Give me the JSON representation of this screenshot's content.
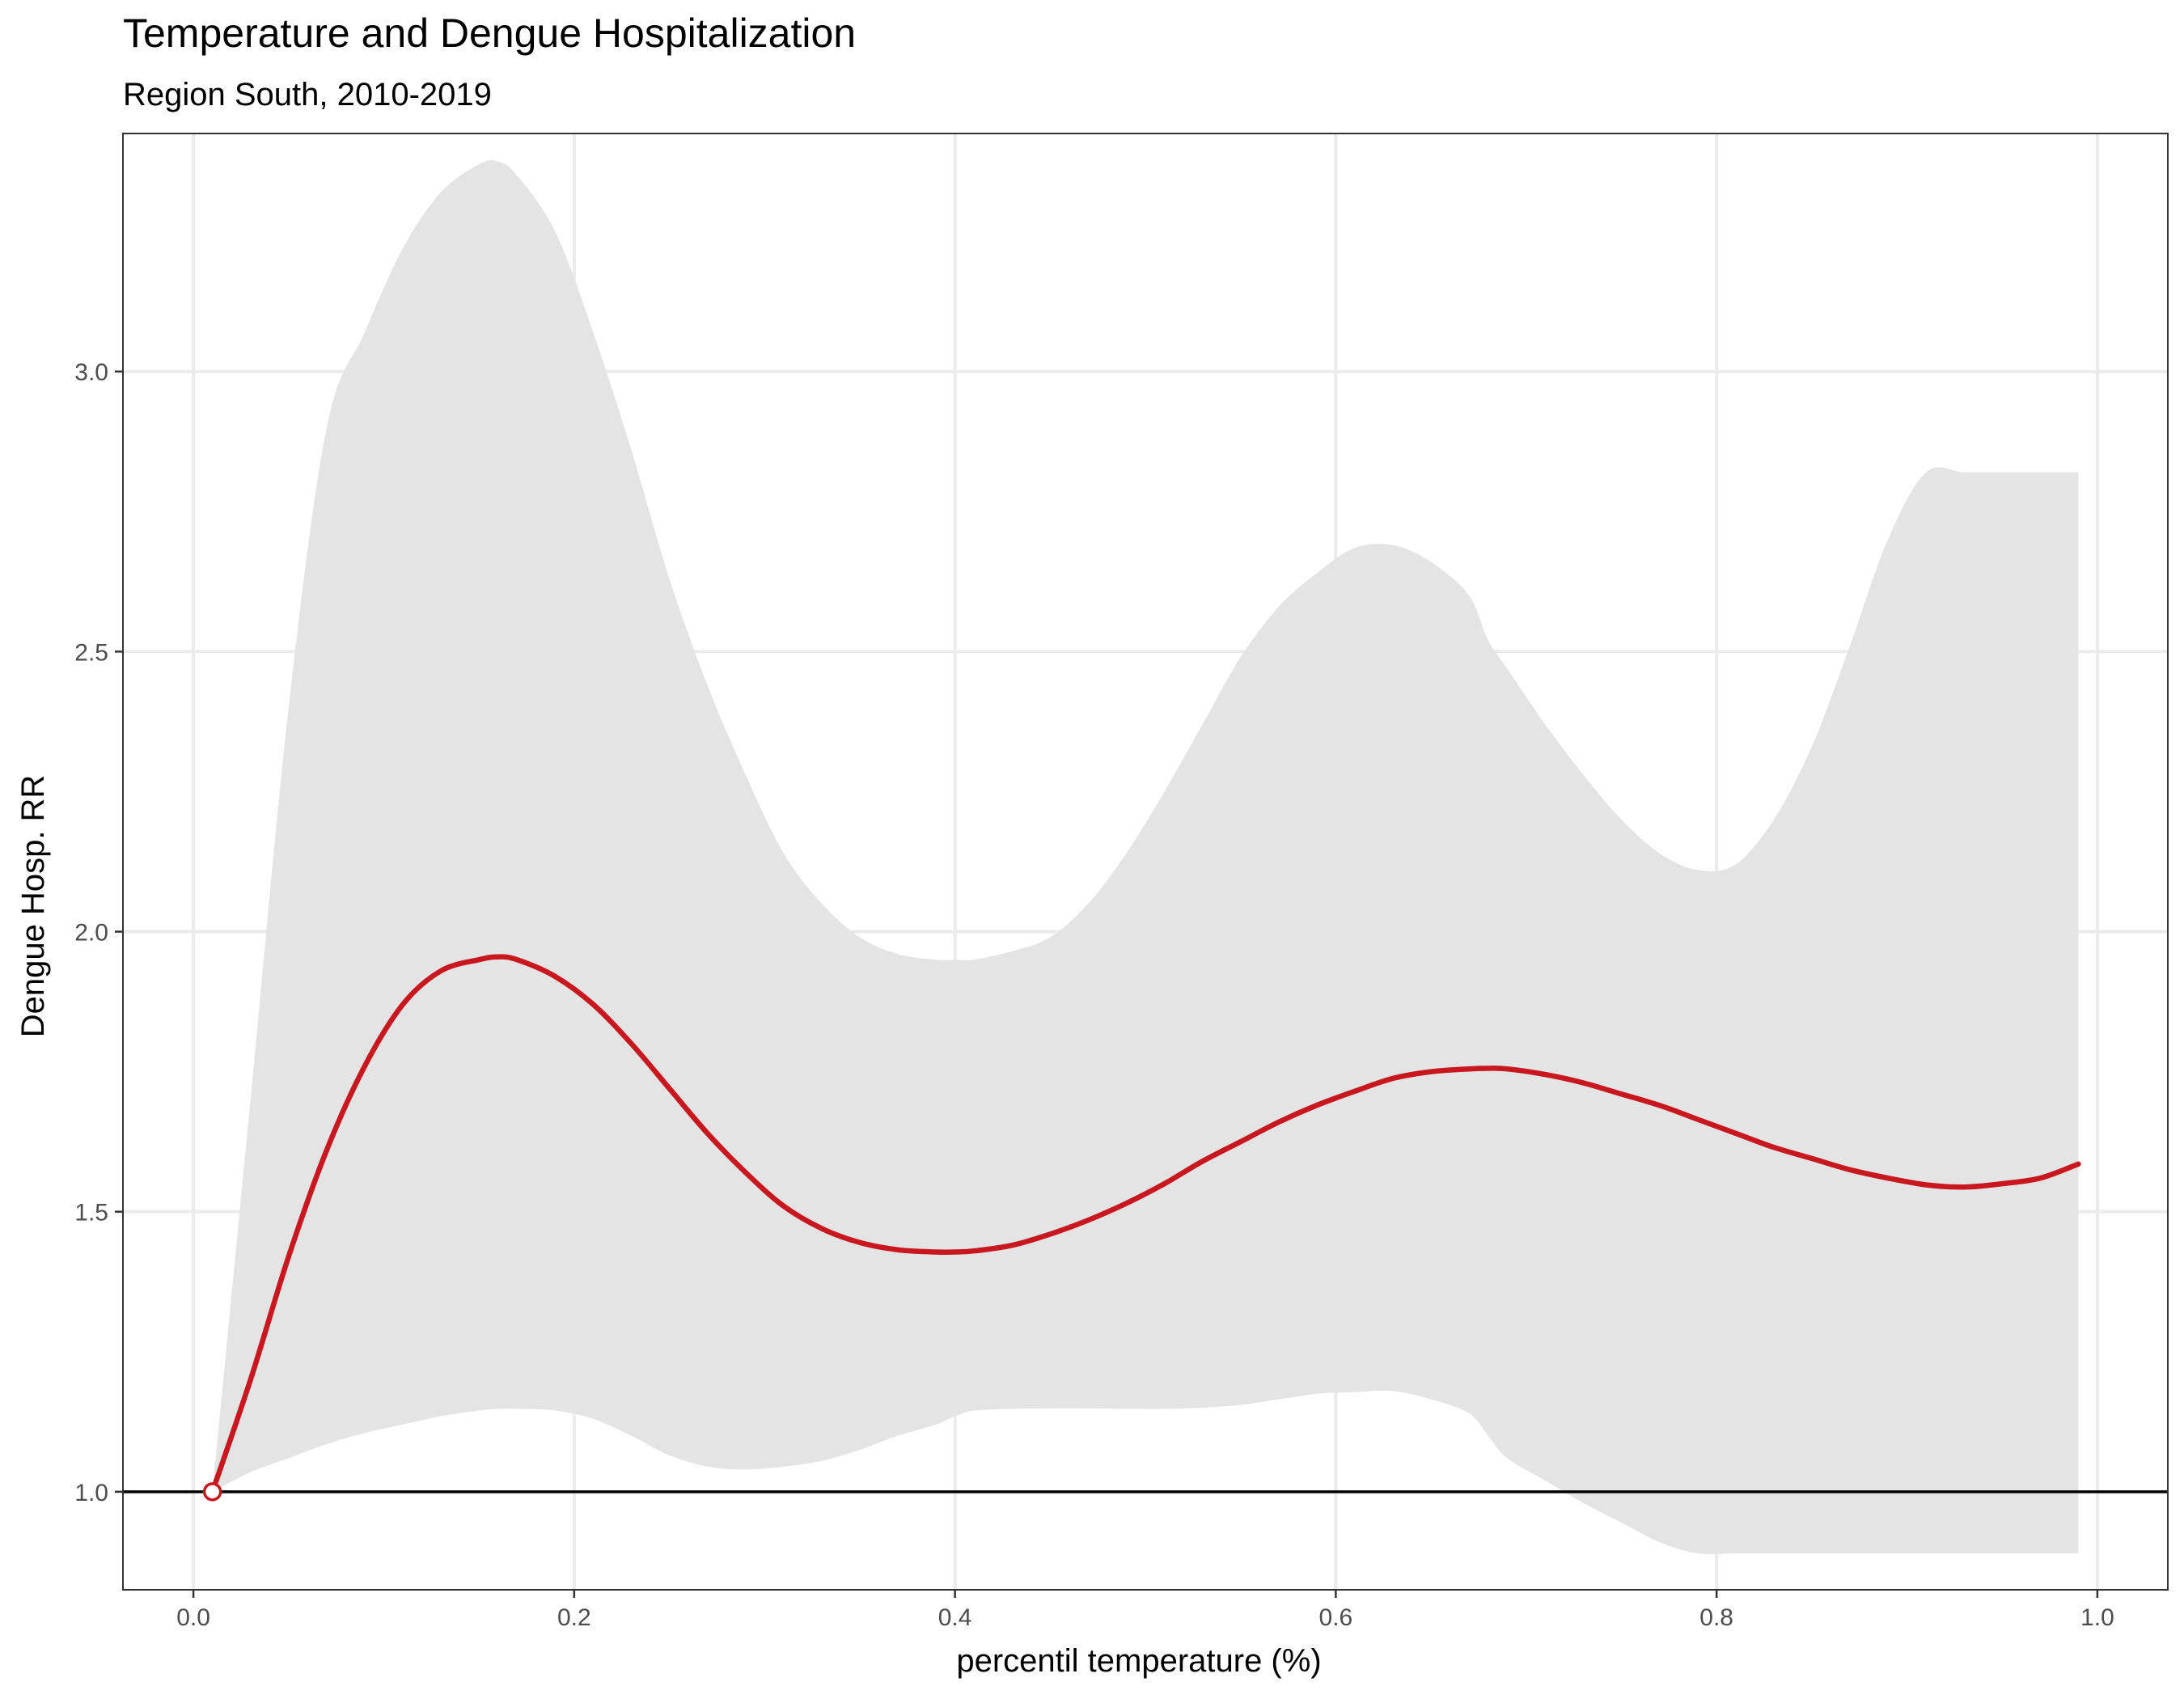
{
  "chart_data": {
    "type": "line",
    "title": "Temperature and Dengue Hospitalization",
    "subtitle": "Region South, 2010-2019",
    "xlabel": "percentil temperature (%)",
    "ylabel": "Dengue Hosp. RR",
    "xlim": [
      -0.037,
      1.037
    ],
    "ylim": [
      0.825,
      3.425
    ],
    "x_ticks": [
      0.0,
      0.2,
      0.4,
      0.6,
      0.8,
      1.0
    ],
    "x_tick_labels": [
      "0.0",
      "0.2",
      "0.4",
      "0.6",
      "0.8",
      "1.0"
    ],
    "y_ticks": [
      1.0,
      1.5,
      2.0,
      2.5,
      3.0
    ],
    "y_tick_labels": [
      "1.0",
      "1.5",
      "2.0",
      "2.5",
      "3.0"
    ],
    "grid": true,
    "reference_line_y": 1.0,
    "reference_point": {
      "x": 0.01,
      "y": 1.0
    },
    "x": [
      0.01,
      0.03,
      0.05,
      0.07,
      0.09,
      0.11,
      0.13,
      0.15,
      0.16,
      0.17,
      0.19,
      0.21,
      0.23,
      0.25,
      0.27,
      0.29,
      0.31,
      0.33,
      0.35,
      0.37,
      0.39,
      0.4,
      0.41,
      0.43,
      0.45,
      0.47,
      0.49,
      0.51,
      0.53,
      0.55,
      0.57,
      0.59,
      0.61,
      0.63,
      0.65,
      0.67,
      0.68,
      0.69,
      0.71,
      0.73,
      0.75,
      0.77,
      0.79,
      0.81,
      0.83,
      0.85,
      0.87,
      0.89,
      0.91,
      0.93,
      0.95,
      0.97,
      0.99
    ],
    "series": [
      {
        "role": "estimate",
        "values": [
          1.0,
          1.2,
          1.42,
          1.61,
          1.76,
          1.87,
          1.93,
          1.95,
          1.955,
          1.95,
          1.92,
          1.87,
          1.8,
          1.72,
          1.64,
          1.57,
          1.51,
          1.47,
          1.445,
          1.432,
          1.428,
          1.428,
          1.43,
          1.44,
          1.46,
          1.485,
          1.515,
          1.55,
          1.59,
          1.625,
          1.66,
          1.69,
          1.715,
          1.738,
          1.75,
          1.755,
          1.756,
          1.755,
          1.745,
          1.73,
          1.71,
          1.69,
          1.665,
          1.64,
          1.615,
          1.595,
          1.575,
          1.56,
          1.548,
          1.544,
          1.55,
          1.56,
          1.585
        ]
      },
      {
        "role": "ci_upper",
        "values": [
          1.0,
          1.7,
          2.4,
          2.9,
          3.07,
          3.22,
          3.32,
          3.37,
          3.375,
          3.35,
          3.25,
          3.07,
          2.86,
          2.63,
          2.44,
          2.28,
          2.14,
          2.05,
          1.99,
          1.96,
          1.95,
          1.95,
          1.95,
          1.965,
          1.99,
          2.05,
          2.14,
          2.25,
          2.37,
          2.49,
          2.58,
          2.64,
          2.685,
          2.69,
          2.66,
          2.6,
          2.52,
          2.47,
          2.37,
          2.28,
          2.2,
          2.14,
          2.11,
          2.12,
          2.2,
          2.33,
          2.51,
          2.7,
          2.82,
          2.82,
          2.82,
          2.82,
          2.82
        ]
      },
      {
        "role": "ci_lower",
        "values": [
          1.0,
          1.035,
          1.06,
          1.085,
          1.105,
          1.12,
          1.135,
          1.145,
          1.148,
          1.148,
          1.145,
          1.13,
          1.1,
          1.065,
          1.045,
          1.04,
          1.045,
          1.055,
          1.075,
          1.1,
          1.12,
          1.135,
          1.145,
          1.148,
          1.149,
          1.149,
          1.148,
          1.148,
          1.15,
          1.155,
          1.165,
          1.175,
          1.178,
          1.18,
          1.165,
          1.14,
          1.1,
          1.06,
          1.02,
          0.98,
          0.945,
          0.91,
          0.89,
          0.89,
          0.89,
          0.89,
          0.89,
          0.89,
          0.89,
          0.89,
          0.89,
          0.89,
          0.89
        ]
      }
    ]
  }
}
